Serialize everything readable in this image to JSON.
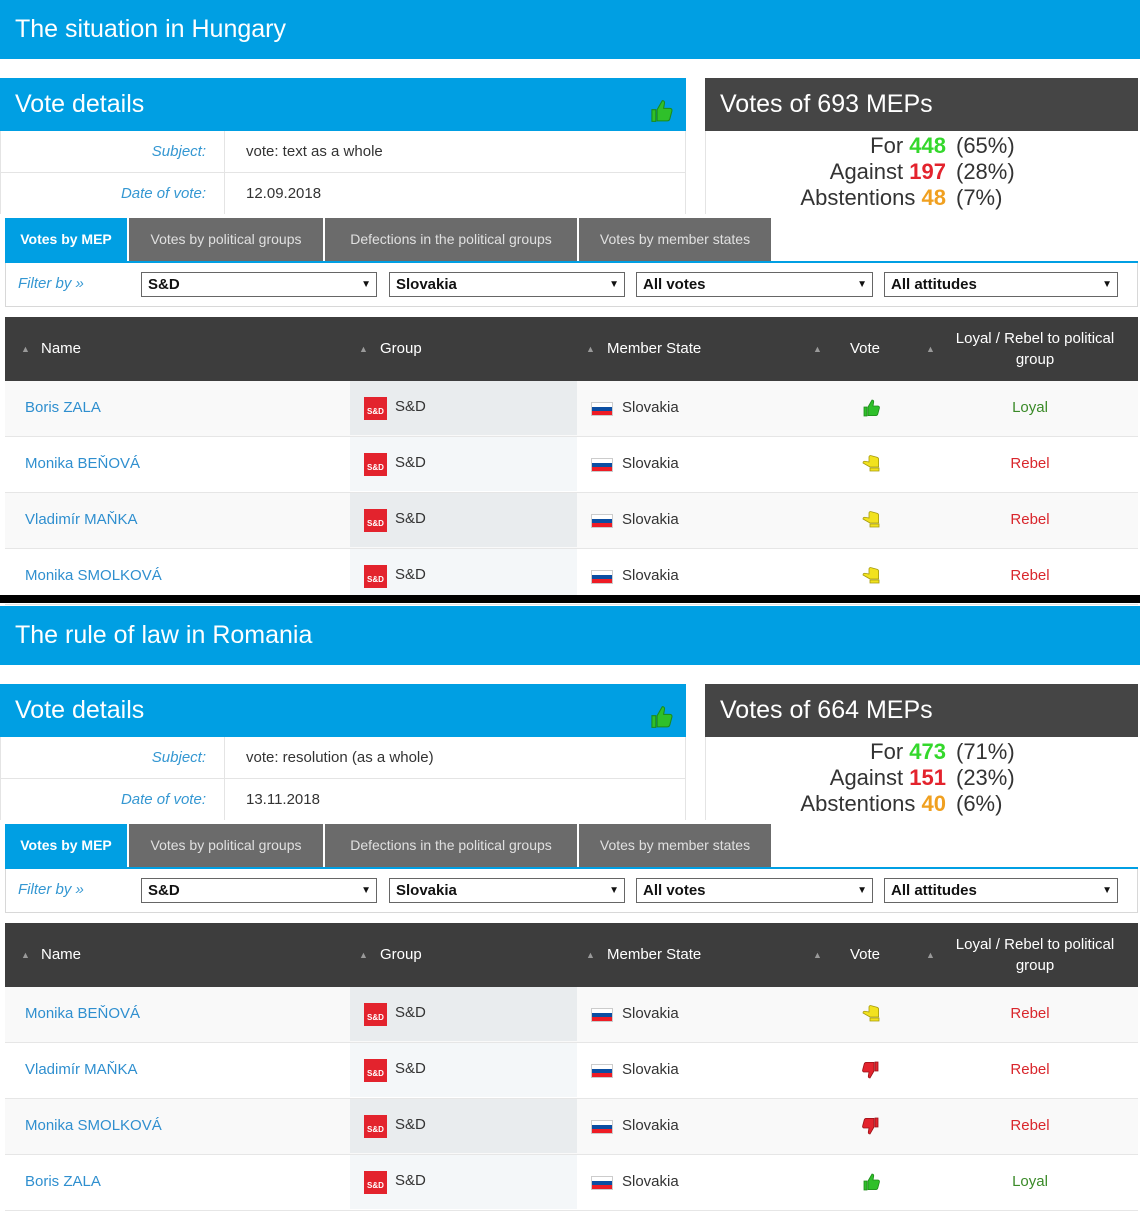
{
  "sections": [
    {
      "title": "The situation in Hungary",
      "details": {
        "heading": "Vote details",
        "subject_label": "Subject:",
        "subject": "vote: text as a whole",
        "date_label": "Date of vote:",
        "date": "12.09.2018",
        "result_icon": "thumbs-up-icon"
      },
      "meps": {
        "heading": "Votes of 693 MEPs",
        "for_label": "For",
        "for": "448",
        "for_pct": "(65%)",
        "against_label": "Against",
        "against": "197",
        "against_pct": "(28%)",
        "abst_label": "Abstentions",
        "abst": "48",
        "abst_pct": "(7%)"
      },
      "tabs": [
        "Votes by MEP",
        "Votes by political groups",
        "Defections in the political groups",
        "Votes by member states"
      ],
      "filter": {
        "label": "Filter by »",
        "group": "S&D",
        "state": "Slovakia",
        "votes": "All votes",
        "attitudes": "All attitudes"
      },
      "columns": {
        "name": "Name",
        "group": "Group",
        "state": "Member State",
        "vote": "Vote",
        "loyal": "Loyal / Rebel to political group"
      },
      "rows": [
        {
          "name": "Boris ZALA",
          "group": "S&D",
          "state": "Slovakia",
          "vote": "for",
          "attitude": "Loyal"
        },
        {
          "name": "Monika BEŇOVÁ",
          "group": "S&D",
          "state": "Slovakia",
          "vote": "abstain",
          "attitude": "Rebel"
        },
        {
          "name": "Vladimír MAŇKA",
          "group": "S&D",
          "state": "Slovakia",
          "vote": "abstain",
          "attitude": "Rebel"
        },
        {
          "name": "Monika SMOLKOVÁ",
          "group": "S&D",
          "state": "Slovakia",
          "vote": "abstain",
          "attitude": "Rebel"
        }
      ]
    },
    {
      "title": "The rule of law in Romania",
      "details": {
        "heading": "Vote details",
        "subject_label": "Subject:",
        "subject": "vote: resolution (as a whole)",
        "date_label": "Date of vote:",
        "date": "13.11.2018",
        "result_icon": "thumbs-up-icon"
      },
      "meps": {
        "heading": "Votes of 664 MEPs",
        "for_label": "For",
        "for": "473",
        "for_pct": "(71%)",
        "against_label": "Against",
        "against": "151",
        "against_pct": "(23%)",
        "abst_label": "Abstentions",
        "abst": "40",
        "abst_pct": "(6%)"
      },
      "tabs": [
        "Votes by MEP",
        "Votes by political groups",
        "Defections in the political groups",
        "Votes by member states"
      ],
      "filter": {
        "label": "Filter by »",
        "group": "S&D",
        "state": "Slovakia",
        "votes": "All votes",
        "attitudes": "All attitudes"
      },
      "columns": {
        "name": "Name",
        "group": "Group",
        "state": "Member State",
        "vote": "Vote",
        "loyal": "Loyal / Rebel to political group"
      },
      "rows": [
        {
          "name": "Monika BEŇOVÁ",
          "group": "S&D",
          "state": "Slovakia",
          "vote": "abstain",
          "attitude": "Rebel"
        },
        {
          "name": "Vladimír MAŇKA",
          "group": "S&D",
          "state": "Slovakia",
          "vote": "against",
          "attitude": "Rebel"
        },
        {
          "name": "Monika SMOLKOVÁ",
          "group": "S&D",
          "state": "Slovakia",
          "vote": "against",
          "attitude": "Rebel"
        },
        {
          "name": "Boris ZALA",
          "group": "S&D",
          "state": "Slovakia",
          "vote": "for",
          "attitude": "Loyal"
        }
      ]
    }
  ],
  "group_logo_text": "S&D",
  "colors": {
    "accent": "#009fe3",
    "dark": "#454545",
    "for": "#34d82c",
    "against": "#e3232d",
    "abstain": "#f0a020"
  }
}
